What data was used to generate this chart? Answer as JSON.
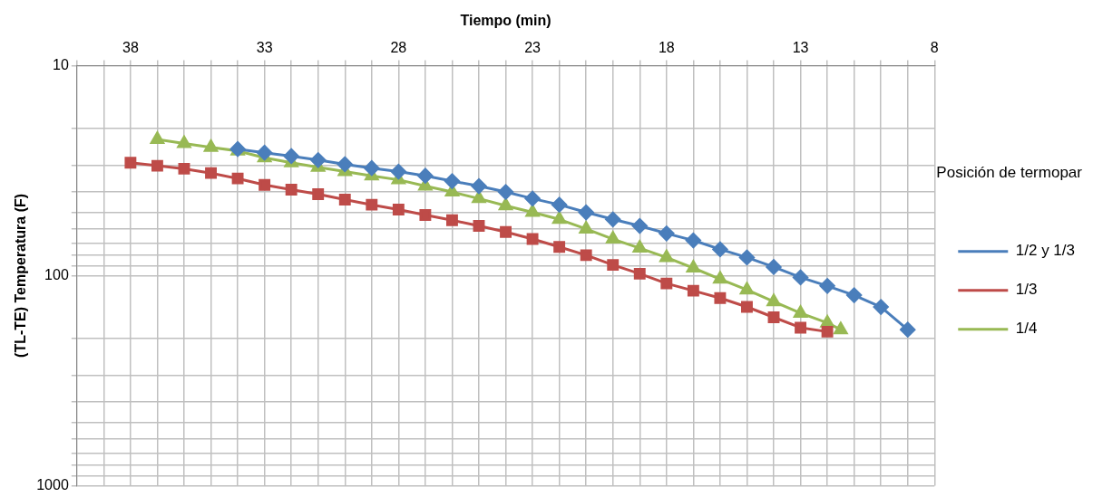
{
  "chart_data": {
    "type": "line",
    "xlabel": "Tiempo (min)",
    "ylabel": "(TL-TE) Temperatura (F)",
    "legend_title": "Posición de termopar",
    "legend": "right",
    "grid": true,
    "log": "y",
    "xlim": [
      40,
      8
    ],
    "xticks": [
      {
        "value": 40,
        "label": null
      },
      {
        "value": 39,
        "label": null
      },
      38,
      {
        "value": 37,
        "label": null
      },
      {
        "value": 36,
        "label": null
      },
      {
        "value": 35,
        "label": null
      },
      {
        "value": 34,
        "label": null
      },
      33,
      {
        "value": 32,
        "label": null
      },
      {
        "value": 31,
        "label": null
      },
      {
        "value": 30,
        "label": null
      },
      {
        "value": 29,
        "label": null
      },
      28,
      {
        "value": 27,
        "label": null
      },
      {
        "value": 26,
        "label": null
      },
      {
        "value": 25,
        "label": null
      },
      {
        "value": 24,
        "label": null
      },
      23,
      {
        "value": 22,
        "label": null
      },
      {
        "value": 21,
        "label": null
      },
      {
        "value": 20,
        "label": null
      },
      {
        "value": 19,
        "label": null
      },
      18,
      {
        "value": 17,
        "label": null
      },
      {
        "value": 16,
        "label": null
      },
      {
        "value": 15,
        "label": null
      },
      {
        "value": 14,
        "label": null
      },
      13,
      {
        "value": 12,
        "label": null
      },
      {
        "value": 11,
        "label": null
      },
      {
        "value": 10,
        "label": null
      },
      {
        "value": 9,
        "label": null
      },
      8
    ],
    "ylim": [
      1000,
      10
    ],
    "yticks": [
      10,
      {
        "value": 20,
        "label": null
      },
      {
        "value": 30,
        "label": null
      },
      {
        "value": 40,
        "label": null
      },
      {
        "value": 50,
        "label": null
      },
      {
        "value": 60,
        "label": null
      },
      {
        "value": 70,
        "label": null
      },
      {
        "value": 80,
        "label": null
      },
      {
        "value": 90,
        "label": null
      },
      100,
      {
        "value": 200,
        "label": null
      },
      {
        "value": 300,
        "label": null
      },
      {
        "value": 400,
        "label": null
      },
      {
        "value": 500,
        "label": null
      },
      {
        "value": 600,
        "label": null
      },
      {
        "value": 700,
        "label": null
      },
      {
        "value": 800,
        "label": null
      },
      {
        "value": 900,
        "label": null
      },
      1000
    ],
    "series": [
      {
        "name": "1/2 y 1/3",
        "color": "#4a7ebb",
        "marker": "diamond",
        "x": [
          34,
          33,
          32,
          31,
          30,
          29,
          28,
          27,
          26,
          25,
          24,
          23,
          22,
          21,
          20,
          19,
          18,
          17,
          16,
          15,
          14,
          13,
          12,
          11,
          10,
          9
        ],
        "values": [
          25,
          26,
          27,
          28.2,
          29.5,
          30.8,
          32,
          33.5,
          35.5,
          37.5,
          40,
          43,
          46,
          50,
          54,
          58,
          63,
          68,
          75,
          82,
          91,
          102,
          112,
          124,
          141,
          181
        ]
      },
      {
        "name": "1/3",
        "color": "#be4b48",
        "marker": "square",
        "x": [
          38,
          37,
          36,
          35,
          34,
          33,
          32,
          31,
          30,
          29,
          28,
          27,
          26,
          25,
          24,
          23,
          22,
          21,
          20,
          19,
          18,
          17,
          16,
          15,
          14,
          13,
          12
        ],
        "values": [
          29,
          30,
          31,
          32.5,
          34.5,
          37,
          39,
          41,
          43.5,
          46,
          48.5,
          51.5,
          54.5,
          58,
          62,
          67,
          73,
          80,
          89,
          98,
          109,
          118,
          128,
          141,
          158,
          177,
          185
        ]
      },
      {
        "name": "1/4",
        "color": "#98b954",
        "marker": "triangle",
        "x": [
          37,
          36,
          35,
          34,
          33,
          32,
          31,
          30,
          29,
          28,
          27,
          26,
          25,
          24,
          23,
          22,
          21,
          20,
          19,
          18,
          17,
          16,
          15,
          14,
          13,
          12,
          11.5
        ],
        "values": [
          22.5,
          23.5,
          24.5,
          25.5,
          27.5,
          29,
          30.5,
          32,
          33.5,
          35,
          37.5,
          40,
          43,
          46.5,
          50,
          54,
          60,
          67,
          74,
          82,
          92,
          104,
          117,
          133,
          151,
          168,
          181
        ]
      }
    ]
  }
}
